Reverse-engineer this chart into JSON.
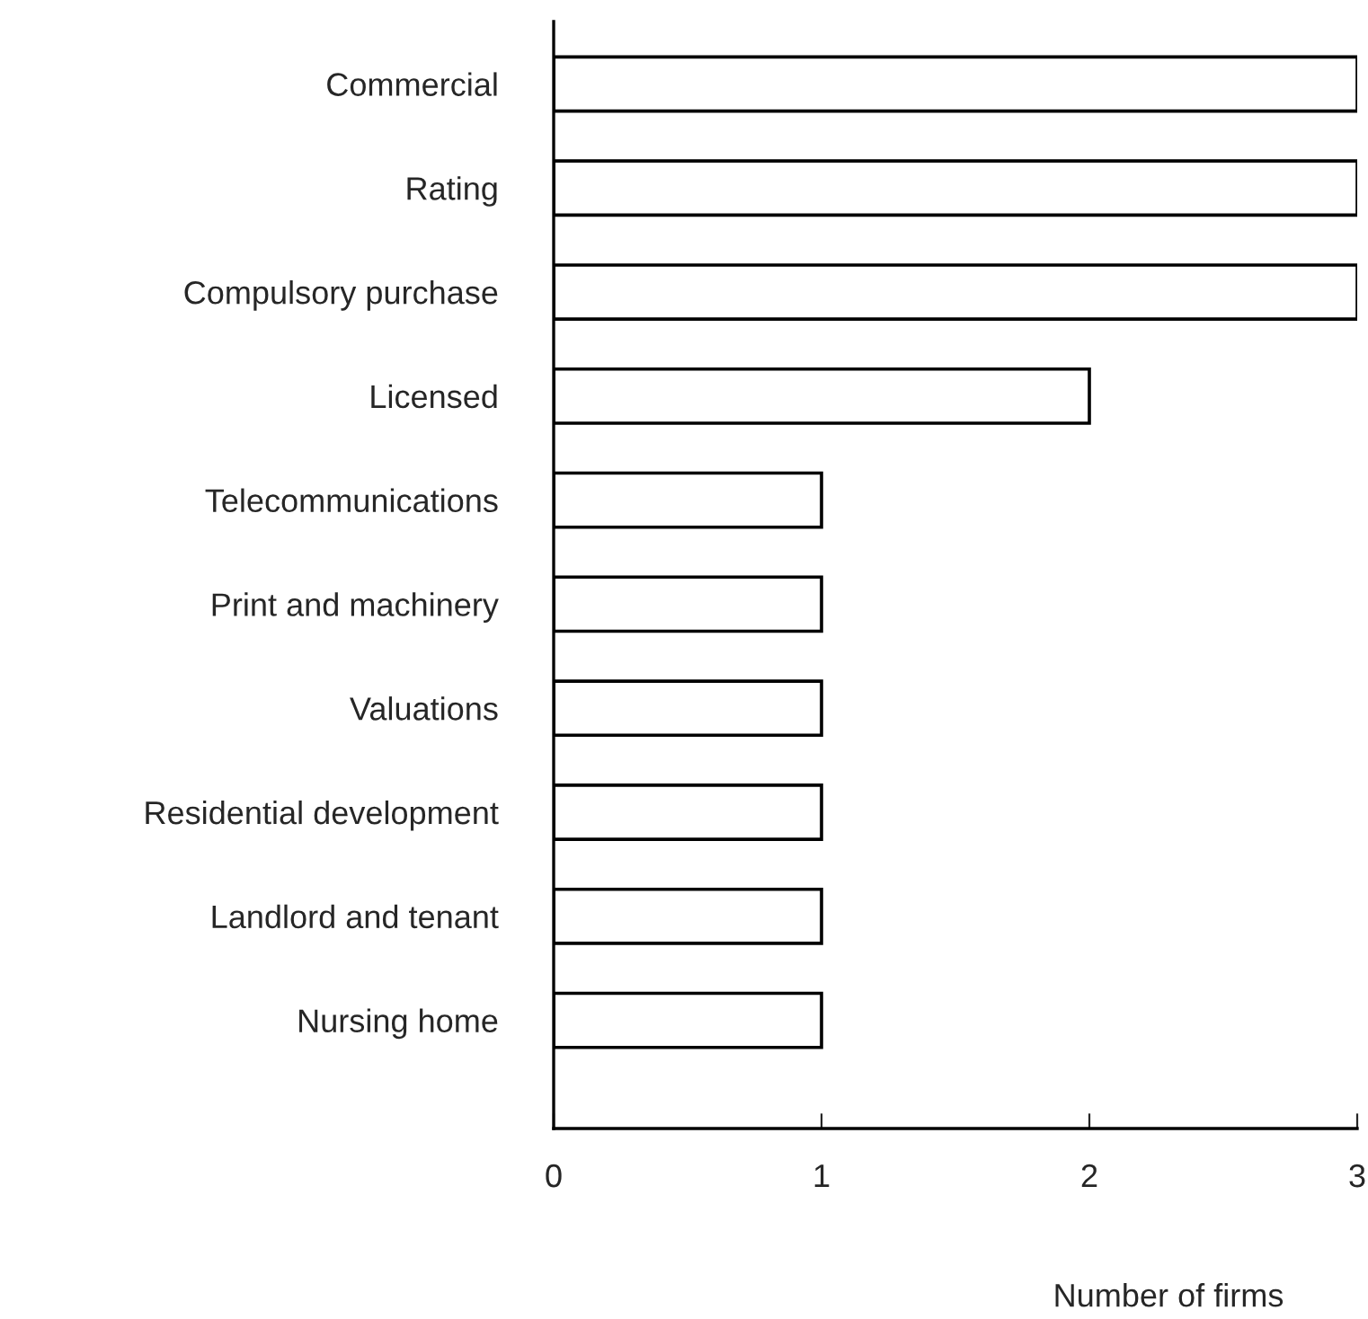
{
  "chart_data": {
    "type": "bar",
    "orientation": "horizontal",
    "xlabel": "Number of firms",
    "categories": [
      "Commercial",
      "Rating",
      "Compulsory purchase",
      "Licensed",
      "Telecommunications",
      "Print and machinery",
      "Valuations",
      "Residential development",
      "Landlord and tenant",
      "Nursing home"
    ],
    "values": [
      3,
      3,
      3,
      2,
      1,
      1,
      1,
      1,
      1,
      1
    ],
    "color": "#ffffff",
    "xlim": [
      0,
      3
    ],
    "xticks": [
      0,
      1,
      2,
      3
    ],
    "grid": false,
    "legend": false
  }
}
